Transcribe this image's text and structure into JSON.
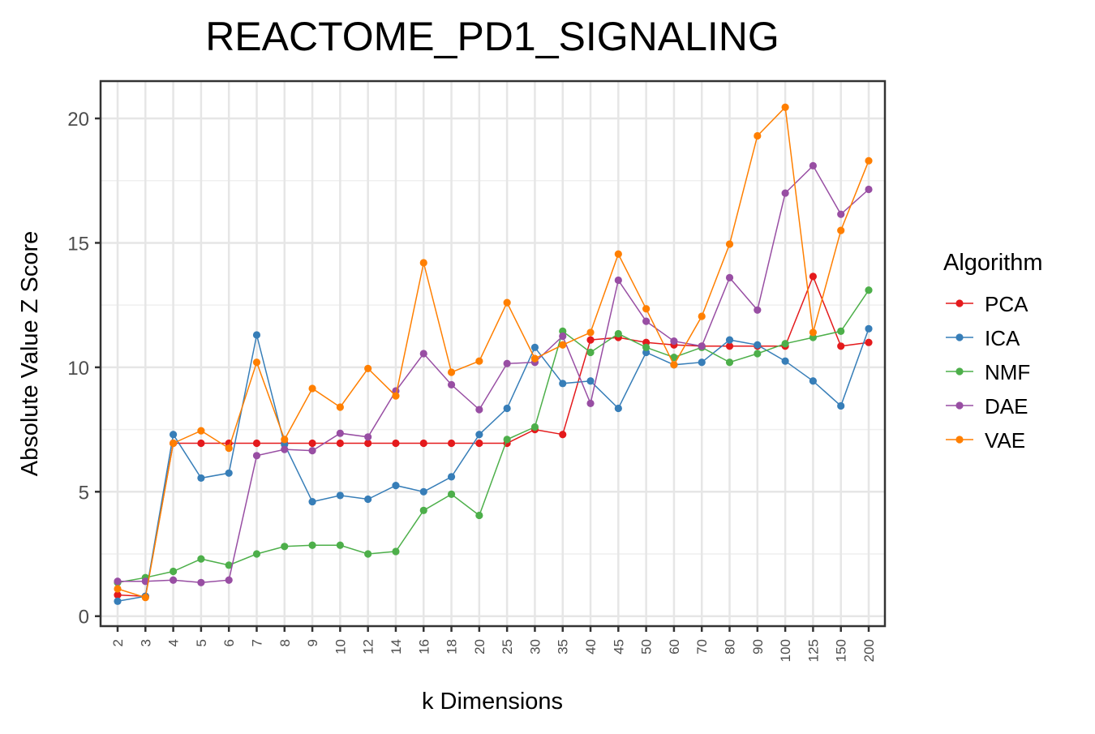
{
  "chart_data": {
    "type": "line",
    "title": "REACTOME_PD1_SIGNALING",
    "xlabel": "k Dimensions",
    "ylabel": "Absolute Value Z Score",
    "x": [
      "2",
      "3",
      "4",
      "5",
      "6",
      "7",
      "8",
      "9",
      "10",
      "12",
      "14",
      "16",
      "18",
      "20",
      "25",
      "30",
      "35",
      "40",
      "45",
      "50",
      "60",
      "70",
      "80",
      "90",
      "100",
      "125",
      "150",
      "200"
    ],
    "ylim": [
      -0.4,
      21.5
    ],
    "yticks": [
      0,
      5,
      10,
      15,
      20
    ],
    "grid": true,
    "legend": {
      "title": "Algorithm",
      "position": "right"
    },
    "series": [
      {
        "name": "PCA",
        "color": "#e41a1c",
        "values": [
          0.85,
          0.8,
          6.95,
          6.95,
          6.95,
          6.95,
          6.95,
          6.95,
          6.95,
          6.95,
          6.95,
          6.95,
          6.95,
          6.95,
          6.95,
          7.5,
          7.3,
          11.1,
          11.2,
          11.0,
          10.9,
          10.85,
          10.85,
          10.85,
          10.85,
          13.65,
          10.85,
          11.0
        ]
      },
      {
        "name": "ICA",
        "color": "#377eb8",
        "values": [
          0.6,
          0.8,
          7.3,
          5.55,
          5.75,
          11.3,
          6.9,
          4.6,
          4.85,
          4.7,
          5.25,
          5.0,
          5.6,
          7.3,
          8.35,
          10.8,
          9.35,
          9.45,
          8.35,
          10.6,
          10.1,
          10.2,
          11.1,
          10.9,
          10.25,
          9.45,
          8.45,
          11.55
        ]
      },
      {
        "name": "NMF",
        "color": "#4daf4a",
        "values": [
          1.35,
          1.55,
          1.8,
          2.3,
          2.05,
          2.5,
          2.8,
          2.85,
          2.85,
          2.5,
          2.6,
          4.25,
          4.9,
          4.05,
          7.1,
          7.6,
          11.45,
          10.6,
          11.35,
          10.8,
          10.4,
          10.8,
          10.2,
          10.55,
          10.95,
          11.2,
          11.45,
          13.1
        ]
      },
      {
        "name": "DAE",
        "color": "#984ea3",
        "values": [
          1.4,
          1.4,
          1.45,
          1.35,
          1.45,
          6.45,
          6.7,
          6.65,
          7.35,
          7.2,
          9.05,
          10.55,
          9.3,
          8.3,
          10.15,
          10.2,
          11.25,
          8.55,
          13.5,
          11.85,
          11.05,
          10.85,
          13.6,
          12.3,
          17.0,
          18.1,
          16.15,
          17.15
        ]
      },
      {
        "name": "VAE",
        "color": "#ff7f00",
        "values": [
          1.1,
          0.75,
          6.95,
          7.45,
          6.75,
          10.2,
          7.1,
          9.15,
          8.4,
          9.95,
          8.85,
          14.2,
          9.8,
          10.25,
          12.6,
          10.35,
          10.9,
          11.4,
          14.55,
          12.35,
          10.1,
          12.05,
          14.95,
          19.3,
          20.45,
          11.4,
          15.5,
          18.3
        ]
      }
    ]
  }
}
